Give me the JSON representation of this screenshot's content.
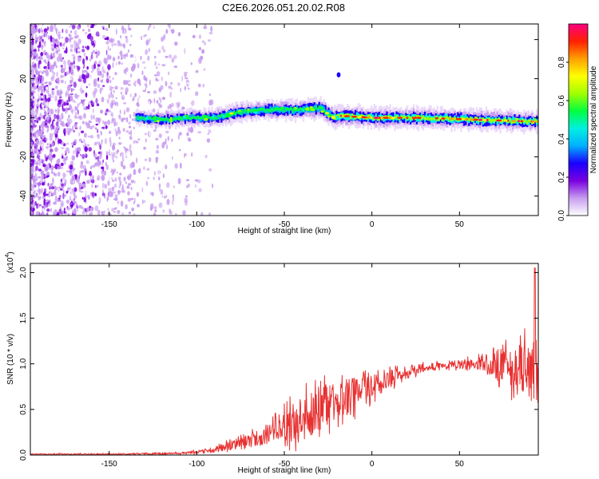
{
  "page": {
    "title": "C2E6.2026.051.20.02.R08"
  },
  "chart_data": [
    {
      "type": "heatmap",
      "title": "C2E6.2026.051.20.02.R08",
      "xlabel": "Height of straight line (km)",
      "ylabel": "Frequency (Hz)",
      "xlim": [
        -195,
        95
      ],
      "ylim": [
        -50,
        48
      ],
      "xticks": [
        -150,
        -100,
        -50,
        0,
        50
      ],
      "yticks": [
        -40,
        -20,
        0,
        20,
        40
      ],
      "grid": false,
      "colorbar": {
        "label": "Normalized spectral amplitude",
        "range": [
          0.0,
          1.0
        ],
        "ticks": [
          0.0,
          0.2,
          0.4,
          0.6,
          0.8
        ],
        "colors": [
          "#ffffff",
          "#c89cf0",
          "#7a00e0",
          "#1a00ff",
          "#00b0ff",
          "#00f0e0",
          "#00ff40",
          "#a0ff00",
          "#ffff00",
          "#ffa000",
          "#ff2000",
          "#ff0080"
        ]
      },
      "ridge": [
        {
          "x": -135,
          "freq": 0.0
        },
        {
          "x": -120,
          "freq": -1.0
        },
        {
          "x": -105,
          "freq": 0.0
        },
        {
          "x": -90,
          "freq": 0.0
        },
        {
          "x": -75,
          "freq": 3.0
        },
        {
          "x": -60,
          "freq": 4.0
        },
        {
          "x": -45,
          "freq": 4.0
        },
        {
          "x": -30,
          "freq": 5.0
        },
        {
          "x": -22,
          "freq": 0.0
        },
        {
          "x": -18,
          "freq": 1.0
        },
        {
          "x": 0,
          "freq": 0.0
        },
        {
          "x": 30,
          "freq": 0.0
        },
        {
          "x": 60,
          "freq": -1.0
        },
        {
          "x": 95,
          "freq": -2.0
        }
      ],
      "isolated_peak": {
        "x": -19,
        "freq": 22
      }
    },
    {
      "type": "line",
      "xlabel": "Height of straight line (km)",
      "ylabel": "SNR (10 * v/v)",
      "multiplier_label": "(x10",
      "multiplier_exponent": "4",
      "multiplier_close": ")",
      "xlim": [
        -195,
        95
      ],
      "ylim": [
        0.0,
        2.1
      ],
      "xticks": [
        -150,
        -100,
        -50,
        0,
        50
      ],
      "yticks": [
        0.0,
        0.5,
        1.0,
        1.5,
        2.0
      ],
      "ytick_labels": [
        "0.0",
        "0.5",
        "1.0",
        "1.5",
        "2.0"
      ],
      "grid": false,
      "color": "#e83030",
      "trend": [
        {
          "x": -195,
          "y": 0.01
        },
        {
          "x": -150,
          "y": 0.01
        },
        {
          "x": -110,
          "y": 0.02
        },
        {
          "x": -100,
          "y": 0.03
        },
        {
          "x": -90,
          "y": 0.06
        },
        {
          "x": -80,
          "y": 0.1
        },
        {
          "x": -70,
          "y": 0.15
        },
        {
          "x": -60,
          "y": 0.22
        },
        {
          "x": -50,
          "y": 0.3
        },
        {
          "x": -40,
          "y": 0.4
        },
        {
          "x": -30,
          "y": 0.5
        },
        {
          "x": -20,
          "y": 0.58
        },
        {
          "x": -10,
          "y": 0.68
        },
        {
          "x": 0,
          "y": 0.77
        },
        {
          "x": 10,
          "y": 0.84
        },
        {
          "x": 20,
          "y": 0.9
        },
        {
          "x": 30,
          "y": 0.96
        },
        {
          "x": 40,
          "y": 0.98
        },
        {
          "x": 50,
          "y": 0.99
        },
        {
          "x": 60,
          "y": 1.0
        },
        {
          "x": 70,
          "y": 1.0
        },
        {
          "x": 80,
          "y": 0.97
        },
        {
          "x": 90,
          "y": 0.95
        },
        {
          "x": 95,
          "y": 0.9
        }
      ],
      "noise_amplitude": [
        {
          "x": -195,
          "a": 0.005
        },
        {
          "x": -110,
          "a": 0.01
        },
        {
          "x": -90,
          "a": 0.03
        },
        {
          "x": -60,
          "a": 0.1
        },
        {
          "x": -40,
          "a": 0.25
        },
        {
          "x": -20,
          "a": 0.22
        },
        {
          "x": 0,
          "a": 0.15
        },
        {
          "x": 20,
          "a": 0.06
        },
        {
          "x": 40,
          "a": 0.03
        },
        {
          "x": 60,
          "a": 0.06
        },
        {
          "x": 75,
          "a": 0.2
        },
        {
          "x": 90,
          "a": 0.3
        },
        {
          "x": 95,
          "a": 0.4
        }
      ],
      "spike": {
        "x": 93,
        "y": 2.05
      }
    }
  ]
}
